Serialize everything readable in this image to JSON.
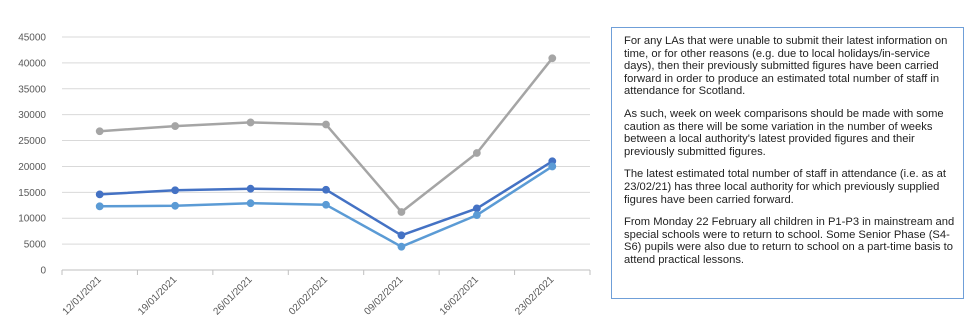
{
  "chart_data": {
    "type": "line",
    "title": "",
    "xlabel": "",
    "ylabel": "",
    "categories": [
      "12/01/2021",
      "19/01/2021",
      "26/01/2021",
      "02/02/2021",
      "09/02/2021",
      "16/02/2021",
      "23/02/2021"
    ],
    "ylim": [
      0,
      45000
    ],
    "yticks": [
      0,
      5000,
      10000,
      15000,
      20000,
      25000,
      30000,
      35000,
      40000,
      45000
    ],
    "grid": true,
    "legend": "none",
    "series": [
      {
        "color": "#a5a5a5",
        "values": [
          26800,
          27800,
          28500,
          28100,
          11200,
          22600,
          40900
        ]
      },
      {
        "color": "#4472c4",
        "values": [
          14600,
          15400,
          15700,
          15500,
          6700,
          11900,
          21000
        ]
      },
      {
        "color": "#5b9bd5",
        "values": [
          12300,
          12400,
          12900,
          12600,
          4500,
          10600,
          20000
        ]
      }
    ]
  },
  "notes": [
    "For any LAs that were unable to submit their latest information on time, or for other reasons (e.g. due to local holidays/in-service days), then their previously submitted figures have been carried forward in order to produce an estimated total number of staff in attendance for Scotland.",
    "As such, week on week comparisons should be made with some caution as there will be some variation in the number of weeks between a local authority's latest provided figures and their previously submitted figures.",
    "The latest estimated total number of staff in attendance (i.e. as at 23/02/21) has three local authority for which previously supplied figures have been carried forward.",
    "From Monday 22 February all children in P1-P3 in mainstream and special schools were to return to school. Some Senior Phase (S4-S6) pupils were also due to return to school on a part-time basis to attend practical lessons."
  ]
}
